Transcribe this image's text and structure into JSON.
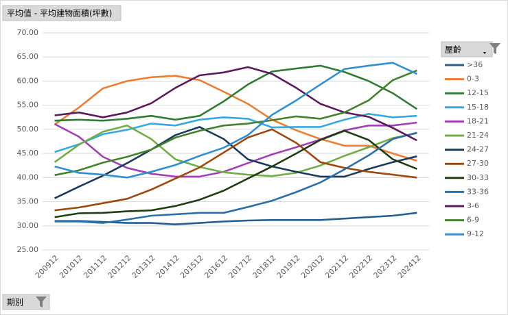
{
  "chart_data": {
    "type": "line",
    "field_value": "平均值 - 平均建物面積(坪數)",
    "field_axis": "期別",
    "legend_title": "屋齡",
    "legend": "right",
    "grid": true,
    "categories": [
      "200912",
      "201012",
      "201112",
      "201212",
      "201312",
      "201412",
      "201512",
      "201612",
      "201712",
      "201812",
      "201912",
      "202012",
      "202112",
      "202212",
      "202312",
      "202412"
    ],
    "ylim": [
      25,
      70
    ],
    "yticks": [
      {
        "value": 25,
        "label": "25.00"
      },
      {
        "value": 30,
        "label": "30.00"
      },
      {
        "value": 35,
        "label": "35.00"
      },
      {
        "value": 40,
        "label": "40.00"
      },
      {
        "value": 45,
        "label": "45.00"
      },
      {
        "value": 50,
        "label": "50.00"
      },
      {
        "value": 55,
        "label": "55.00"
      },
      {
        "value": 60,
        "label": "60.00"
      },
      {
        "value": 65,
        "label": "65.00"
      },
      {
        "value": 70,
        "label": "70.00"
      }
    ],
    "series": [
      {
        "name": ">36",
        "color": "#255e91",
        "values": [
          31.0,
          31.0,
          30.8,
          30.6,
          30.6,
          30.3,
          30.6,
          30.9,
          31.1,
          31.2,
          31.2,
          31.2,
          31.5,
          31.8,
          32.1,
          32.7
        ]
      },
      {
        "name": "0-3",
        "color": "#ed7d31",
        "values": [
          51.0,
          54.5,
          58.5,
          60.0,
          60.8,
          61.1,
          60.2,
          57.8,
          55.3,
          52.0,
          49.8,
          48.0,
          46.6,
          46.6,
          45.0,
          43.5
        ]
      },
      {
        "name": "12-15",
        "color": "#2e7d32",
        "values": [
          51.8,
          52.0,
          51.8,
          52.2,
          52.8,
          52.0,
          52.8,
          55.8,
          59.3,
          62.0,
          62.6,
          63.2,
          61.9,
          60.0,
          57.5,
          54.2
        ]
      },
      {
        "name": "15-18",
        "color": "#36a9e1",
        "values": [
          45.3,
          46.9,
          49.0,
          49.9,
          51.2,
          50.8,
          52.0,
          52.5,
          52.2,
          50.4,
          50.5,
          50.5,
          52.0,
          53.2,
          52.5,
          52.8
        ]
      },
      {
        "name": "18-21",
        "color": "#a33fb4",
        "values": [
          51.1,
          48.5,
          44.3,
          42.0,
          40.8,
          40.2,
          40.2,
          41.2,
          43.0,
          44.8,
          46.3,
          47.9,
          49.8,
          50.8,
          50.8,
          51.4
        ]
      },
      {
        "name": "21-24",
        "color": "#70ad47",
        "values": [
          43.2,
          46.8,
          49.5,
          50.8,
          48.0,
          43.8,
          42.2,
          41.1,
          40.6,
          40.3,
          41.0,
          42.5,
          44.5,
          46.3,
          48.2,
          49.2
        ]
      },
      {
        "name": "24-27",
        "color": "#1b3a5c",
        "values": [
          35.7,
          38.1,
          40.4,
          43.0,
          45.8,
          48.8,
          50.5,
          48.0,
          43.8,
          42.3,
          41.2,
          40.2,
          40.2,
          41.8,
          43.2,
          44.4
        ]
      },
      {
        "name": "27-30",
        "color": "#9e480e",
        "values": [
          33.2,
          33.8,
          34.7,
          35.6,
          37.5,
          39.8,
          42.1,
          45.2,
          48.3,
          50.0,
          47.2,
          43.2,
          42.0,
          41.2,
          40.6,
          40.0
        ]
      },
      {
        "name": "30-33",
        "color": "#1f3d12",
        "values": [
          31.8,
          32.6,
          32.7,
          33.0,
          33.2,
          34.1,
          35.4,
          37.3,
          39.8,
          42.3,
          45.0,
          47.8,
          49.7,
          47.8,
          43.8,
          41.8
        ]
      },
      {
        "name": "33-36",
        "color": "#2c6fa8",
        "values": [
          30.9,
          30.9,
          30.6,
          31.3,
          32.1,
          32.4,
          32.7,
          32.7,
          33.9,
          35.2,
          37.0,
          39.0,
          41.7,
          44.6,
          48.0,
          49.3
        ]
      },
      {
        "name": "3-6",
        "color": "#5b1a5e",
        "values": [
          52.9,
          53.5,
          52.5,
          53.5,
          55.4,
          58.6,
          61.2,
          61.8,
          62.9,
          61.5,
          58.6,
          55.3,
          53.5,
          52.6,
          50.3,
          47.7
        ]
      },
      {
        "name": "6-9",
        "color": "#43822b",
        "values": [
          40.5,
          41.5,
          43.1,
          44.3,
          45.8,
          48.3,
          49.7,
          50.8,
          51.2,
          51.9,
          52.7,
          52.2,
          53.5,
          56.0,
          60.2,
          62.2
        ]
      },
      {
        "name": "9-12",
        "color": "#2f8fd0",
        "values": [
          42.3,
          41.0,
          40.6,
          40.0,
          41.2,
          42.6,
          44.5,
          46.2,
          48.8,
          53.0,
          56.0,
          59.3,
          62.5,
          63.2,
          63.8,
          61.5
        ]
      }
    ]
  }
}
